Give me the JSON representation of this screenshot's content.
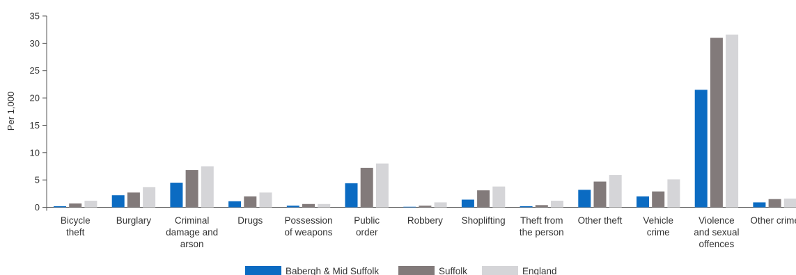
{
  "chart_data": {
    "type": "bar",
    "ylabel": "Per 1,000",
    "ylim": [
      0,
      35
    ],
    "yticks": [
      0,
      5,
      10,
      15,
      20,
      25,
      30,
      35
    ],
    "grid": false,
    "legend_position": "bottom",
    "categories": [
      [
        "Bicycle",
        "theft"
      ],
      [
        "Burglary"
      ],
      [
        "Criminal",
        "damage and",
        "arson"
      ],
      [
        "Drugs"
      ],
      [
        "Possession",
        "of weapons"
      ],
      [
        "Public",
        "order"
      ],
      [
        "Robbery"
      ],
      [
        "Shoplifting"
      ],
      [
        "Theft from",
        "the person"
      ],
      [
        "Other theft"
      ],
      [
        "Vehicle",
        "crime"
      ],
      [
        "Violence",
        "and sexual",
        "offences"
      ],
      [
        "Other crime"
      ]
    ],
    "series": [
      {
        "name": "Babergh & Mid Suffolk",
        "color": "#0b6bc2",
        "values": [
          0.2,
          2.2,
          4.5,
          1.1,
          0.3,
          4.4,
          0.1,
          1.4,
          0.2,
          3.2,
          2.0,
          21.5,
          0.9
        ]
      },
      {
        "name": "Suffolk",
        "color": "#827a7a",
        "values": [
          0.7,
          2.7,
          6.8,
          2.0,
          0.6,
          7.2,
          0.3,
          3.1,
          0.4,
          4.7,
          2.9,
          31.0,
          1.5
        ]
      },
      {
        "name": "England",
        "color": "#d5d5d8",
        "values": [
          1.2,
          3.7,
          7.5,
          2.7,
          0.6,
          8.0,
          0.9,
          3.8,
          1.2,
          5.9,
          5.1,
          31.6,
          1.6
        ]
      }
    ]
  }
}
